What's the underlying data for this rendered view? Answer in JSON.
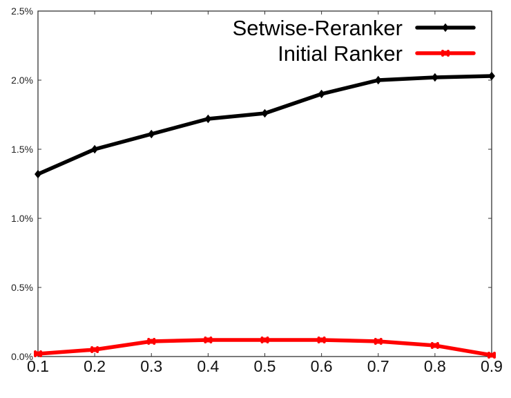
{
  "chart_data": {
    "type": "line",
    "title": "",
    "xlabel": "",
    "ylabel": "",
    "x": [
      0.1,
      0.2,
      0.3,
      0.4,
      0.5,
      0.6,
      0.7,
      0.8,
      0.9
    ],
    "x_tick_labels": [
      "0.1",
      "0.2",
      "0.3",
      "0.4",
      "0.5",
      "0.6",
      "0.7",
      "0.8",
      "0.9"
    ],
    "y_tick_values": [
      0.0,
      0.5,
      1.0,
      1.5,
      2.0,
      2.5
    ],
    "y_tick_labels": [
      "0.0%",
      "0.5%",
      "1.0%",
      "1.5%",
      "2.0%",
      "2.5%"
    ],
    "xlim": [
      0.1,
      0.9
    ],
    "ylim": [
      0.0,
      2.5
    ],
    "y_unit": "%",
    "grid": false,
    "legend_position": "top-right",
    "series": [
      {
        "name": "Setwise-Reranker",
        "color": "#000000",
        "marker": "diamond",
        "values": [
          1.32,
          1.5,
          1.61,
          1.72,
          1.76,
          1.9,
          2.0,
          2.02,
          2.03
        ]
      },
      {
        "name": "Initial Ranker",
        "color": "#ff0000",
        "marker": "x",
        "values": [
          0.02,
          0.05,
          0.11,
          0.12,
          0.12,
          0.12,
          0.11,
          0.08,
          0.01
        ]
      }
    ]
  }
}
